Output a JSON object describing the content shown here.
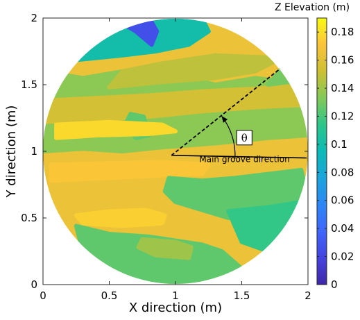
{
  "chart_data": {
    "type": "heatmap",
    "title": "",
    "xlabel": "X direction (m)",
    "ylabel": "Y direction (m)",
    "xlim": [
      0,
      2
    ],
    "ylim": [
      0,
      2
    ],
    "xticks": [
      0,
      0.5,
      1,
      1.5,
      2
    ],
    "yticks": [
      0,
      0.5,
      1,
      1.5,
      2
    ],
    "xtick_labels": [
      "0",
      "0.5",
      "1",
      "1.5",
      "2"
    ],
    "ytick_labels": [
      "0",
      "0.5",
      "1",
      "1.5",
      "2"
    ],
    "domain": {
      "shape": "circle",
      "center": [
        1,
        1
      ],
      "radius": 1
    },
    "colorbar": {
      "title": "Z Elevation (m)",
      "colormap": "parula",
      "range": [
        0,
        0.19
      ],
      "ticks": [
        0,
        0.02,
        0.04,
        0.06,
        0.08,
        0.1,
        0.12,
        0.14,
        0.16,
        0.18
      ],
      "tick_labels": [
        "0",
        "0.02",
        "0.04",
        "0.06",
        "0.08",
        "0.1",
        "0.12",
        "0.14",
        "0.16",
        "0.18"
      ],
      "placement": "right"
    },
    "base_elevation": 0.165,
    "regions": [
      {
        "z": 0.135,
        "poly": [
          [
            0,
            1.0
          ],
          [
            0.3,
            1.02
          ],
          [
            0.6,
            1.0
          ],
          [
            0.9,
            1.03
          ],
          [
            1.3,
            1.06
          ],
          [
            1.7,
            1.1
          ],
          [
            2,
            1.12
          ],
          [
            2,
            1.5
          ],
          [
            1.6,
            1.55
          ],
          [
            1.3,
            1.5
          ],
          [
            1.0,
            1.58
          ],
          [
            0.6,
            1.6
          ],
          [
            0.3,
            1.55
          ],
          [
            0,
            1.6
          ]
        ]
      },
      {
        "z": 0.155,
        "poly": [
          [
            0,
            1.22
          ],
          [
            0.4,
            1.24
          ],
          [
            0.8,
            1.26
          ],
          [
            1.2,
            1.3
          ],
          [
            1.6,
            1.33
          ],
          [
            2,
            1.35
          ],
          [
            2,
            1.5
          ],
          [
            1.6,
            1.47
          ],
          [
            1.2,
            1.45
          ],
          [
            0.8,
            1.42
          ],
          [
            0.4,
            1.4
          ],
          [
            0,
            1.38
          ]
        ]
      },
      {
        "z": 0.148,
        "poly": [
          [
            0.5,
            1.48
          ],
          [
            0.9,
            1.52
          ],
          [
            1.3,
            1.55
          ],
          [
            1.6,
            1.6
          ],
          [
            1.8,
            1.7
          ],
          [
            1.3,
            1.72
          ],
          [
            0.9,
            1.66
          ],
          [
            0.6,
            1.6
          ]
        ]
      },
      {
        "z": 0.1,
        "poly": [
          [
            0.2,
            1.68
          ],
          [
            0.6,
            1.72
          ],
          [
            0.85,
            1.75
          ],
          [
            1.1,
            1.8
          ],
          [
            1.25,
            1.9
          ],
          [
            1.2,
            2
          ],
          [
            0,
            2
          ],
          [
            0,
            1.72
          ]
        ]
      },
      {
        "z": 0.04,
        "poly": [
          [
            0.45,
            1.88
          ],
          [
            0.6,
            1.96
          ],
          [
            0.76,
            2
          ],
          [
            0.6,
            2
          ],
          [
            0.5,
            1.95
          ]
        ]
      },
      {
        "z": 0.025,
        "poly": [
          [
            0.6,
            1.96
          ],
          [
            0.7,
            1.9
          ],
          [
            0.82,
            1.8
          ],
          [
            0.86,
            1.9
          ],
          [
            0.82,
            1.97
          ],
          [
            0.76,
            2
          ]
        ]
      },
      {
        "z": 0.125,
        "poly": [
          [
            0.66,
            1.28
          ],
          [
            0.76,
            1.26
          ],
          [
            0.8,
            1.12
          ],
          [
            0.7,
            1.1
          ],
          [
            0.62,
            1.2
          ]
        ]
      },
      {
        "z": 0.178,
        "poly": [
          [
            0.1,
            1.1
          ],
          [
            0.4,
            1.12
          ],
          [
            0.8,
            1.13
          ],
          [
            1.0,
            1.15
          ],
          [
            0.9,
            1.2
          ],
          [
            0.5,
            1.22
          ],
          [
            0.1,
            1.2
          ]
        ]
      },
      {
        "z": 0.172,
        "poly": [
          [
            0.06,
            0.78
          ],
          [
            0.5,
            0.8
          ],
          [
            0.9,
            0.82
          ],
          [
            1.2,
            0.83
          ],
          [
            1.25,
            0.9
          ],
          [
            0.9,
            0.92
          ],
          [
            0.5,
            0.91
          ],
          [
            0.06,
            0.9
          ]
        ]
      },
      {
        "z": 0.175,
        "poly": [
          [
            0.25,
            0.52
          ],
          [
            0.5,
            0.55
          ],
          [
            0.78,
            0.56
          ],
          [
            0.92,
            0.52
          ],
          [
            0.9,
            0.46
          ],
          [
            0.6,
            0.44
          ],
          [
            0.3,
            0.46
          ]
        ]
      },
      {
        "z": 0.125,
        "poly": [
          [
            0.95,
            0.8
          ],
          [
            1.2,
            0.78
          ],
          [
            1.45,
            0.8
          ],
          [
            1.7,
            0.83
          ],
          [
            1.95,
            0.86
          ],
          [
            2,
            0.64
          ],
          [
            1.7,
            0.55
          ],
          [
            1.4,
            0.5
          ],
          [
            1.2,
            0.56
          ],
          [
            1.0,
            0.62
          ],
          [
            0.92,
            0.7
          ]
        ]
      },
      {
        "z": 0.125,
        "poly": [
          [
            0.25,
            0.44
          ],
          [
            0.5,
            0.38
          ],
          [
            0.8,
            0.36
          ],
          [
            1.0,
            0.33
          ],
          [
            1.2,
            0.3
          ],
          [
            1.35,
            0.25
          ],
          [
            1.5,
            0.12
          ],
          [
            1.2,
            0.02
          ],
          [
            0.8,
            0.02
          ],
          [
            0.5,
            0.1
          ],
          [
            0.3,
            0.25
          ]
        ]
      },
      {
        "z": 0.115,
        "poly": [
          [
            1.4,
            0.55
          ],
          [
            1.7,
            0.58
          ],
          [
            1.95,
            0.62
          ],
          [
            1.9,
            0.4
          ],
          [
            1.7,
            0.25
          ],
          [
            1.5,
            0.32
          ]
        ]
      },
      {
        "z": 0.14,
        "poly": [
          [
            0.75,
            0.34
          ],
          [
            1.0,
            0.32
          ],
          [
            1.12,
            0.28
          ],
          [
            1.1,
            0.2
          ],
          [
            0.85,
            0.22
          ],
          [
            0.72,
            0.28
          ]
        ]
      },
      {
        "z": 0.13,
        "poly": [
          [
            1.7,
            1.5
          ],
          [
            1.85,
            1.52
          ],
          [
            2,
            1.48
          ],
          [
            2,
            1.62
          ],
          [
            1.8,
            1.62
          ]
        ]
      }
    ],
    "annotations": {
      "groove_line": {
        "from": [
          0.97,
          0.97
        ],
        "to": [
          1.99,
          0.95
        ]
      },
      "dashed_line": {
        "from": [
          0.97,
          0.97
        ],
        "to": [
          1.79,
          1.62
        ]
      },
      "arc": {
        "center": [
          0.97,
          0.97
        ],
        "radius": 0.48,
        "start_deg": -3,
        "end_deg": 38
      },
      "groove_label": "Main groove direction",
      "groove_label_at": [
        1.18,
        0.92
      ],
      "theta_label": "θ",
      "theta_box_at": [
        1.52,
        1.1
      ]
    }
  }
}
